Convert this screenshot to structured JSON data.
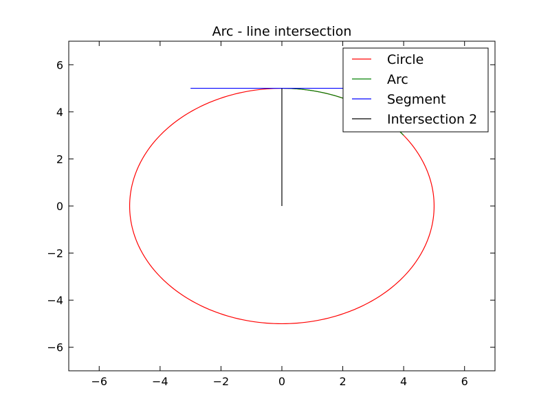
{
  "chart_data": {
    "type": "line",
    "title": "Arc - line intersection",
    "xlabel": "",
    "ylabel": "",
    "xlim": [
      -7,
      7
    ],
    "ylim": [
      -7,
      7
    ],
    "xticks": [
      -6,
      -4,
      -2,
      0,
      2,
      4,
      6
    ],
    "yticks": [
      -6,
      -4,
      -2,
      0,
      2,
      4,
      6
    ],
    "grid": false,
    "legend_position": "top-right",
    "series": [
      {
        "name": "Circle",
        "color": "#ff0000",
        "kind": "circle",
        "center": [
          0,
          0
        ],
        "radius": 5
      },
      {
        "name": "Arc",
        "color": "#008000",
        "kind": "arc",
        "center": [
          0,
          0
        ],
        "radius": 5,
        "start_deg": 37,
        "end_deg": 90
      },
      {
        "name": "Segment",
        "color": "#0000ff",
        "kind": "polyline",
        "x": [
          -3,
          2
        ],
        "y": [
          5,
          5
        ]
      },
      {
        "name": "Intersection 2",
        "color": "#000000",
        "kind": "polyline",
        "x": [
          0,
          0
        ],
        "y": [
          0,
          5
        ]
      }
    ]
  }
}
